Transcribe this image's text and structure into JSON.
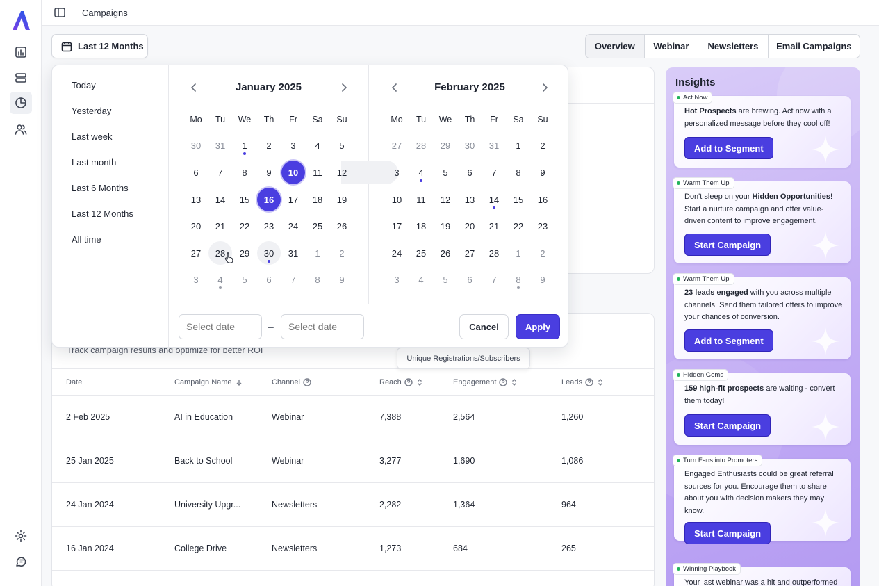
{
  "header": {
    "title": "Campaigns"
  },
  "date_range": {
    "label": "Last 12 Months"
  },
  "tabs": [
    {
      "label": "Overview",
      "active": true
    },
    {
      "label": "Webinar",
      "active": false
    },
    {
      "label": "Newsletters",
      "active": false
    },
    {
      "label": "Email Campaigns",
      "active": false
    }
  ],
  "presets": [
    "Today",
    "Yesterday",
    "Last week",
    "Last month",
    "Last 6 Months",
    "Last 12 Months",
    "All time"
  ],
  "calendar": {
    "weekdays": [
      "Mo",
      "Tu",
      "We",
      "Th",
      "Fr",
      "Sa",
      "Su"
    ],
    "months": [
      {
        "title": "January 2025",
        "weeks": [
          [
            "30",
            "31",
            "1",
            "2",
            "3",
            "4",
            "5"
          ],
          [
            "6",
            "7",
            "8",
            "9",
            "10",
            "11",
            "12"
          ],
          [
            "13",
            "14",
            "15",
            "16",
            "17",
            "18",
            "19"
          ],
          [
            "20",
            "21",
            "22",
            "23",
            "24",
            "25",
            "26"
          ],
          [
            "27",
            "28",
            "29",
            "30",
            "31",
            "1",
            "2"
          ],
          [
            "3",
            "4",
            "5",
            "6",
            "7",
            "8",
            "9"
          ]
        ],
        "muted": [
          [
            0,
            0
          ],
          [
            0,
            1
          ],
          [
            4,
            5
          ],
          [
            4,
            6
          ],
          [
            5,
            0
          ],
          [
            5,
            1
          ],
          [
            5,
            2
          ],
          [
            5,
            3
          ],
          [
            5,
            4
          ],
          [
            5,
            5
          ],
          [
            5,
            6
          ]
        ],
        "selected": [
          [
            1,
            4
          ],
          [
            2,
            3
          ]
        ],
        "soft": [
          [
            4,
            1
          ],
          [
            4,
            3
          ]
        ],
        "dots": [
          [
            0,
            2,
            "accent"
          ],
          [
            4,
            3,
            "accent"
          ],
          [
            5,
            1,
            "grey"
          ]
        ]
      },
      {
        "title": "February 2025",
        "weeks": [
          [
            "27",
            "28",
            "29",
            "30",
            "31",
            "1",
            "2"
          ],
          [
            "3",
            "4",
            "5",
            "6",
            "7",
            "8",
            "9"
          ],
          [
            "10",
            "11",
            "12",
            "13",
            "14",
            "15",
            "16"
          ],
          [
            "17",
            "18",
            "19",
            "20",
            "21",
            "22",
            "23"
          ],
          [
            "24",
            "25",
            "26",
            "27",
            "28",
            "1",
            "2"
          ],
          [
            "3",
            "4",
            "5",
            "6",
            "7",
            "8",
            "9"
          ]
        ],
        "muted": [
          [
            0,
            0
          ],
          [
            0,
            1
          ],
          [
            0,
            2
          ],
          [
            0,
            3
          ],
          [
            0,
            4
          ],
          [
            4,
            5
          ],
          [
            4,
            6
          ],
          [
            5,
            0
          ],
          [
            5,
            1
          ],
          [
            5,
            2
          ],
          [
            5,
            3
          ],
          [
            5,
            4
          ],
          [
            5,
            5
          ],
          [
            5,
            6
          ]
        ],
        "selected": [],
        "soft": [],
        "dots": [
          [
            1,
            1,
            "accent"
          ],
          [
            2,
            4,
            "accent"
          ],
          [
            5,
            5,
            "grey"
          ]
        ]
      }
    ],
    "start_placeholder": "Select date",
    "end_placeholder": "Select date",
    "separator": "–",
    "cancel_label": "Cancel",
    "apply_label": "Apply"
  },
  "table": {
    "subtitle": "Track campaign results and optimize for better ROI",
    "tooltip": "Unique Registrations/Subscribers",
    "columns": [
      "Date",
      "Campaign Name",
      "Channel",
      "Reach",
      "Engagement",
      "Leads"
    ],
    "rows": [
      [
        "2 Feb 2025",
        "AI in Education",
        "Webinar",
        "7,388",
        "2,564",
        "1,260"
      ],
      [
        "25 Jan 2025",
        "Back to School",
        "Webinar",
        "3,277",
        "1,690",
        "1,086"
      ],
      [
        "24 Jan 2024",
        "University Upgr...",
        "Newsletters",
        "2,282",
        "1,364",
        "964"
      ],
      [
        "16 Jan 2024",
        "College Drive",
        "Newsletters",
        "1,273",
        "684",
        "265"
      ]
    ]
  },
  "insights": {
    "title": "Insights",
    "cards": [
      {
        "badge": "Act Now",
        "pre": "",
        "bold": "Hot Prospects",
        "post": " are brewing. Act now with a personalized message before they cool off!",
        "button": "Add to Segment"
      },
      {
        "badge": "Warm Them Up",
        "pre": "Don't sleep on your ",
        "bold": "Hidden Opportunities",
        "post": "! Start a nurture campaign and offer value-driven content to improve engagement.",
        "button": "Start Campaign"
      },
      {
        "badge": "Warm Them Up",
        "pre": "",
        "bold": "23 leads engaged",
        "post": " with you across multiple channels. Send them tailored offers to improve your chances of conversion.",
        "button": "Add to Segment"
      },
      {
        "badge": "Hidden Gems",
        "pre": "",
        "bold": "159 high-fit prospects",
        "post": " are waiting - convert them today!",
        "button": "Start Campaign"
      },
      {
        "badge": "Turn Fans into Promoters",
        "pre": "Engaged Enthusiasts could be great referral sources for you. Encourage them to share about you with decision makers they may know.",
        "bold": "",
        "post": "",
        "button": "Start Campaign"
      },
      {
        "badge": "Winning Playbook",
        "pre": "Your last webinar was a hit and outperformed",
        "bold": "",
        "post": "",
        "button": ""
      }
    ]
  },
  "colors": {
    "accent": "#4a3ee0",
    "badge_dot": "#22b35b"
  },
  "icons": {
    "rail": [
      "bar-chart-icon",
      "server-stack-icon",
      "pie-chart-icon",
      "users-icon"
    ],
    "rail_bottom": [
      "settings-icon",
      "support-chat-icon"
    ]
  }
}
